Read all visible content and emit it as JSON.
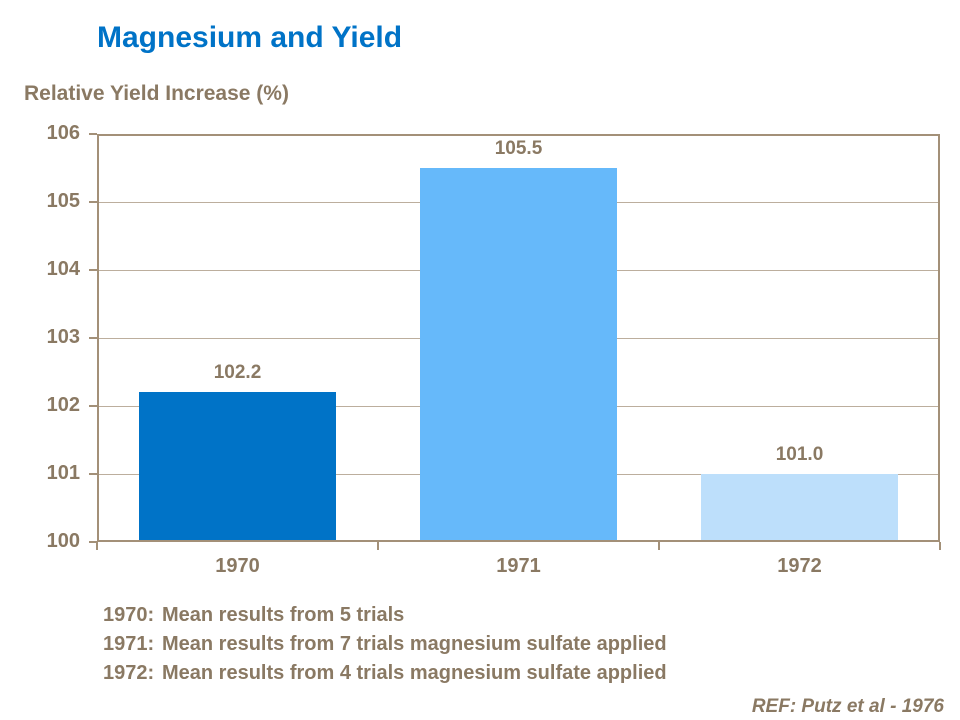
{
  "slide": {
    "title": "Magnesium and Yield",
    "subtitle": "Relative Yield Increase (%)",
    "reference": "REF: Putz et al - 1976"
  },
  "colors": {
    "title_blue": "#0073C7",
    "text_brown": "#8A7963",
    "gridline_tan": "#BCAE9D",
    "frame_tan": "#A39078"
  },
  "chart_data": {
    "type": "bar",
    "title": "Magnesium and Yield",
    "ylabel": "Relative Yield Increase (%)",
    "xlabel": "",
    "categories": [
      "1970",
      "1971",
      "1972"
    ],
    "values": [
      102.2,
      105.5,
      101.0
    ],
    "value_labels": [
      "102.2",
      "105.5",
      "101.0"
    ],
    "bar_colors": [
      "#0073C7",
      "#66B9FA",
      "#BDDFFB"
    ],
    "ylim": [
      100,
      106
    ],
    "yticks": [
      100,
      101,
      102,
      103,
      104,
      105,
      106
    ],
    "grid": "horizontal",
    "legend": "none"
  },
  "annotations": [
    {
      "year": "1970:",
      "text": "Mean results from 5 trials"
    },
    {
      "year": "1971:",
      "text": "Mean results from 7 trials magnesium sulfate applied"
    },
    {
      "year": "1972:",
      "text": "Mean results from 4 trials magnesium sulfate applied"
    }
  ]
}
